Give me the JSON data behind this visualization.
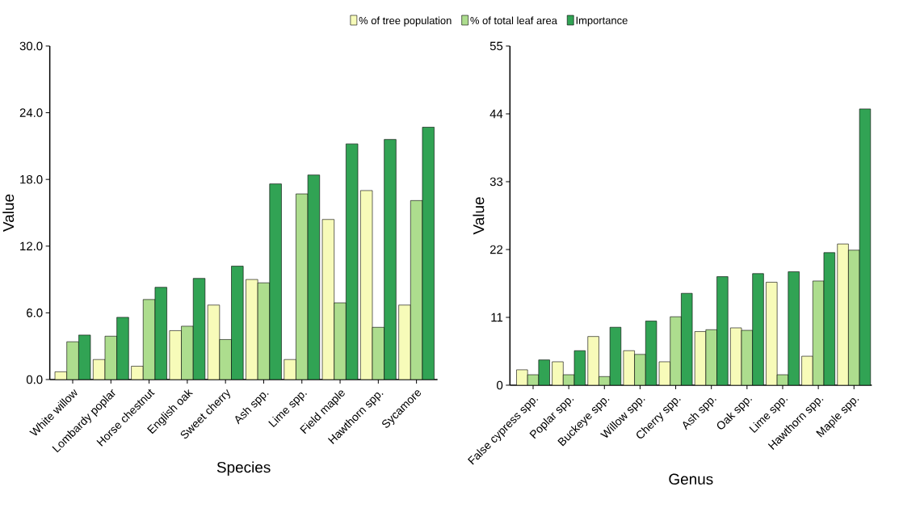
{
  "chart_data": [
    {
      "type": "bar",
      "xlabel": "Species",
      "ylabel": "Value",
      "legend": "top",
      "categories": [
        "White willow",
        "Lombardy poplar",
        "Horse chestnut",
        "English oak",
        "Sweet cherry",
        "Ash spp.",
        "Lime spp.",
        "Field maple",
        "Hawthorn spp.",
        "Sycamore"
      ],
      "series": [
        {
          "name": "% of tree population",
          "color": "#f7fbb9",
          "values": [
            0.7,
            1.8,
            1.2,
            4.4,
            6.7,
            9.0,
            1.8,
            14.4,
            17.0,
            6.7
          ]
        },
        {
          "name": "% of total leaf area",
          "color": "#addd8e",
          "values": [
            3.4,
            3.9,
            7.2,
            4.8,
            3.6,
            8.7,
            16.7,
            6.9,
            4.7,
            16.1
          ]
        },
        {
          "name": "Importance",
          "color": "#31a354",
          "values": [
            4.0,
            5.6,
            8.3,
            9.1,
            10.2,
            17.6,
            18.4,
            21.2,
            21.6,
            22.7
          ]
        }
      ],
      "ylim": [
        0,
        30
      ],
      "yticks": [
        {
          "value": 0,
          "label": "0.0"
        },
        {
          "value": 6,
          "label": "6.0"
        },
        {
          "value": 12,
          "label": "12.0"
        },
        {
          "value": 18,
          "label": "18.0"
        },
        {
          "value": 24,
          "label": "24.0"
        },
        {
          "value": 30,
          "label": "30.0"
        }
      ]
    },
    {
      "type": "bar",
      "xlabel": "Genus",
      "ylabel": "Value",
      "categories": [
        "False cypress spp.",
        "Poplar spp.",
        "Buckeye spp.",
        "Willow spp.",
        "Cherry spp.",
        "Ash spp.",
        "Oak spp.",
        "Lime spp.",
        "Hawthorn spp.",
        "Maple spp."
      ],
      "series": [
        {
          "color": "#f7fbb9",
          "values": [
            2.5,
            3.8,
            7.9,
            5.6,
            3.8,
            8.7,
            9.3,
            16.7,
            4.7,
            22.9
          ]
        },
        {
          "color": "#addd8e",
          "values": [
            1.7,
            1.7,
            1.4,
            5.0,
            11.1,
            9.0,
            8.9,
            1.7,
            16.9,
            21.9
          ]
        },
        {
          "color": "#31a354",
          "values": [
            4.1,
            5.6,
            9.4,
            10.4,
            14.9,
            17.6,
            18.1,
            18.4,
            21.5,
            44.8
          ]
        }
      ],
      "ylim": [
        0,
        55
      ],
      "yticks": [
        0,
        11,
        22,
        33,
        44,
        55
      ]
    }
  ]
}
